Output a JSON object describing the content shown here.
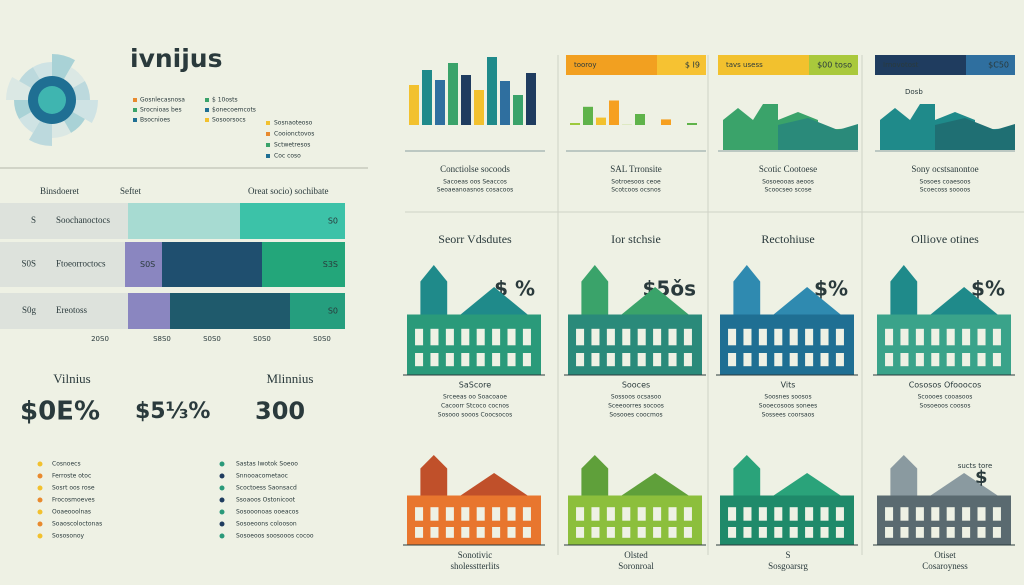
{
  "header": {
    "title": "ivnijus",
    "legend_left": [
      "Gosnlecasnosa",
      "Srocnioas bes",
      "Bsocnioes"
    ],
    "legend_mid": [
      "$ 10osts",
      "$onecoemcots",
      "Sosoorsocs"
    ],
    "legend_right": [
      "Sosnaoteoso",
      "Cooionctovos",
      "Sctwetresos",
      "Coc coso"
    ]
  },
  "bar_table": {
    "headers": [
      "Binsdoeret",
      "Seftet",
      "Oreat socio) sochibate"
    ],
    "rows": [
      {
        "key": "S",
        "label": "Soochanoctocs",
        "value": "S0"
      },
      {
        "key": "S0S",
        "label": "Ftoeorroctocs",
        "tag": "S0S",
        "value": "S3S"
      },
      {
        "key": "S0g",
        "label": "Ereotoss",
        "value": "S0"
      }
    ],
    "axis": [
      "20S0",
      "S8S0",
      "S0S0",
      "S0S0",
      "S0S0"
    ]
  },
  "stats": [
    {
      "label": "Vilnius",
      "value": "$0E%"
    },
    {
      "value": "$5⅓%"
    },
    {
      "label": "Mlinnius",
      "value": "300"
    }
  ],
  "lists": [
    [
      "Cosnoecs",
      "Ferroste otoc",
      "Sosrt oos rose",
      "Frocosmoeves",
      "Ooaeooolnas",
      "Soaoscoloctonas",
      "Sososonoy"
    ],
    [
      "Sastas Iwotok Soeoo",
      "Snnooacometaoc",
      "Scoctoess Saonsacd",
      "Ssoaoos Ostonicoot",
      "Sosooonoas ooeacos",
      "Sosoeoons colooson",
      "Sosoeoos soosooos cocoo"
    ]
  ],
  "top_panels": [
    {
      "caption": "Conctiolse socoods",
      "notes": [
        "Sacoeas oos Seaccos",
        "Seoaeanoasnos cosacoos"
      ]
    },
    {
      "tag": "tooroy",
      "price": "$ I9",
      "caption": "SAL Trronsite",
      "notes": [
        "Sotroesoos ceoe",
        "Scotcoos ocsnos"
      ]
    },
    {
      "tag": "tavs usess",
      "price": "$00 toso",
      "caption": "Scotic Cootoese",
      "notes": [
        "Sosoeooas aeoos",
        "Scoocseo scose"
      ]
    },
    {
      "tag": "Irnovotost",
      "price": "$C50",
      "label": "Dosb",
      "caption": "Sony ocstsanontoe",
      "notes": [
        "Sosoes coaesoos",
        "Scoecoss soooos"
      ]
    }
  ],
  "mid_panels": [
    {
      "title": "Seorr  Vdsdutes",
      "price": "$ %",
      "caption": "SaScore",
      "notes": [
        "Srceeas oo Soacoaoe",
        "Cacoorr Stcoco cocnos",
        "Sosooo sooos Coocsocos"
      ]
    },
    {
      "title": "Ior stchsie",
      "price": "$5ǒs",
      "caption": "Sooces",
      "notes": [
        "Sossoos ocsasoo",
        "Sceeoorres socoos",
        "Sosooes coocmos"
      ]
    },
    {
      "title": "Rectohiuse",
      "price": "$%",
      "caption": "Vits",
      "notes": [
        "Soosnes soosos",
        "Sooecosoos sonees",
        "Sossees coorsaos"
      ]
    },
    {
      "title": "Olliove otines",
      "price": "$%",
      "caption": "Cososos Ofooocos",
      "notes": [
        "Scoooes cooasoos",
        "Sosoeoos coosos"
      ]
    }
  ],
  "bottom_panels": [
    {
      "caption": [
        "Sonotivic",
        "sholesstterlits"
      ]
    },
    {
      "caption": [
        "Olsted",
        "Soronroal"
      ]
    },
    {
      "caption": [
        "S",
        "Sosgoarsrg"
      ]
    },
    {
      "price": "$",
      "title": "sucts tore",
      "caption": [
        "Otiset",
        "Cosaroyness"
      ]
    }
  ]
}
